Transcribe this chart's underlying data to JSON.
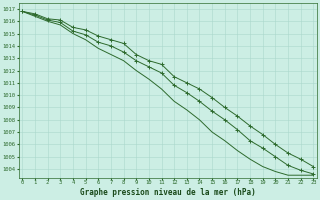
{
  "title": "Graphe pression niveau de la mer (hPa)",
  "line_upper": [
    1016.8,
    1016.6,
    1016.2,
    1016.1,
    1015.5,
    1015.3,
    1014.8,
    1014.5,
    1014.2,
    1013.3,
    1012.8,
    1012.5,
    1011.5,
    1011.0,
    1010.5,
    1009.8,
    1009.0,
    1008.3,
    1007.5,
    1006.8,
    1006.0,
    1005.3,
    1004.8,
    1004.2
  ],
  "line_mid": [
    1016.8,
    1016.5,
    1016.1,
    1015.9,
    1015.2,
    1014.9,
    1014.3,
    1014.0,
    1013.5,
    1012.8,
    1012.3,
    1011.8,
    1010.8,
    1010.2,
    1009.5,
    1008.7,
    1008.0,
    1007.2,
    1006.3,
    1005.7,
    1005.0,
    1004.3,
    1003.9,
    1003.6
  ],
  "line_lower": [
    1016.8,
    1016.4,
    1016.0,
    1015.7,
    1015.0,
    1014.5,
    1013.8,
    1013.3,
    1012.8,
    1012.0,
    1011.3,
    1010.5,
    1009.5,
    1008.8,
    1008.0,
    1007.0,
    1006.3,
    1005.5,
    1004.8,
    1004.2,
    1003.8,
    1003.5,
    1003.5,
    1003.5
  ],
  "yticks": [
    1004,
    1005,
    1006,
    1007,
    1008,
    1009,
    1010,
    1011,
    1012,
    1013,
    1014,
    1015,
    1016,
    1017
  ],
  "ylim": [
    1003.3,
    1017.5
  ],
  "xlim": [
    -0.3,
    23.3
  ],
  "line_color": "#2d6a2d",
  "bg_color": "#cceee4",
  "grid_color": "#aad8cc",
  "title_color": "#1a4a1a",
  "tick_color": "#2d6a2d",
  "marker_upper": true,
  "marker_mid": true,
  "marker_lower": false
}
